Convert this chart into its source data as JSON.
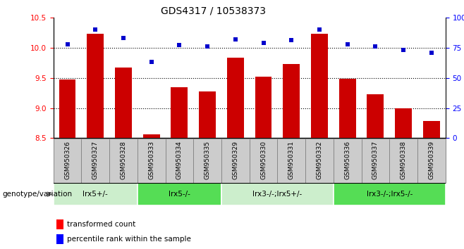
{
  "title": "GDS4317 / 10538373",
  "samples": [
    "GSM950326",
    "GSM950327",
    "GSM950328",
    "GSM950333",
    "GSM950334",
    "GSM950335",
    "GSM950329",
    "GSM950330",
    "GSM950331",
    "GSM950332",
    "GSM950336",
    "GSM950337",
    "GSM950338",
    "GSM950339"
  ],
  "bar_values": [
    9.47,
    10.23,
    9.67,
    8.56,
    9.35,
    9.27,
    9.83,
    9.52,
    9.73,
    10.23,
    9.48,
    9.23,
    9.0,
    8.78
  ],
  "dot_values": [
    78,
    90,
    83,
    63,
    77,
    76,
    82,
    79,
    81,
    90,
    78,
    76,
    73,
    71
  ],
  "bar_color": "#cc0000",
  "dot_color": "#0000cc",
  "ylim_left": [
    8.5,
    10.5
  ],
  "ylim_right": [
    0,
    100
  ],
  "yticks_left": [
    8.5,
    9.0,
    9.5,
    10.0,
    10.5
  ],
  "yticks_right": [
    0,
    25,
    50,
    75,
    100
  ],
  "yticklabels_right": [
    "0",
    "25",
    "50",
    "75",
    "100%"
  ],
  "grid_vals": [
    9.0,
    9.5,
    10.0
  ],
  "groups": [
    {
      "label": "lrx5+/-",
      "start": 0,
      "end": 3,
      "color": "#cceecc"
    },
    {
      "label": "lrx5-/-",
      "start": 3,
      "end": 6,
      "color": "#55dd55"
    },
    {
      "label": "lrx3-/-;lrx5+/-",
      "start": 6,
      "end": 10,
      "color": "#cceecc"
    },
    {
      "label": "lrx3-/-;lrx5-/-",
      "start": 10,
      "end": 14,
      "color": "#55dd55"
    }
  ],
  "legend_bar_label": "transformed count",
  "legend_dot_label": "percentile rank within the sample",
  "bar_width": 0.6,
  "xlabel_label": "genotype/variation",
  "sample_box_color": "#cccccc",
  "sample_box_edge": "#888888"
}
